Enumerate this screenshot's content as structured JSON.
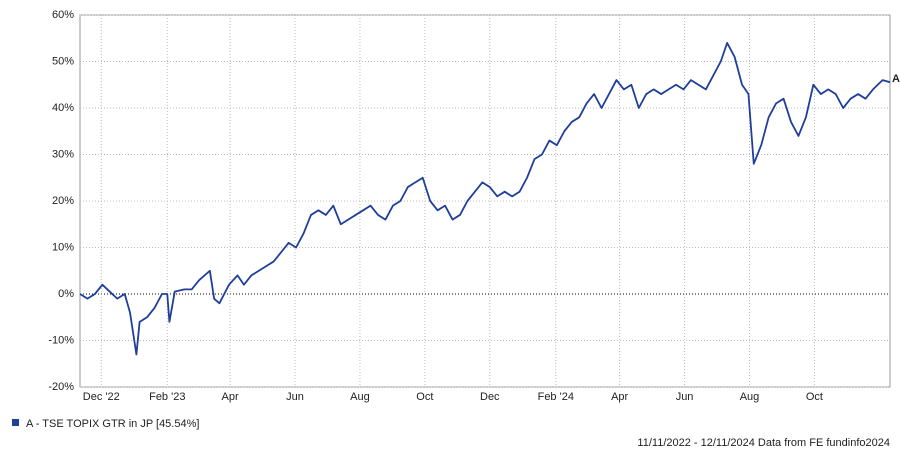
{
  "chart_data": {
    "type": "line",
    "xlim": [
      "2022-11-11",
      "2024-12-11"
    ],
    "xticks": [
      {
        "value": "2022-12-01",
        "label": "Dec '22"
      },
      {
        "value": "2023-02-01",
        "label": "Feb '23"
      },
      {
        "value": "2023-04-01",
        "label": "Apr"
      },
      {
        "value": "2023-06-01",
        "label": "Jun"
      },
      {
        "value": "2023-08-01",
        "label": "Aug"
      },
      {
        "value": "2023-10-01",
        "label": "Oct"
      },
      {
        "value": "2023-12-01",
        "label": "Dec"
      },
      {
        "value": "2024-02-01",
        "label": "Feb '24"
      },
      {
        "value": "2024-04-01",
        "label": "Apr"
      },
      {
        "value": "2024-06-01",
        "label": "Jun"
      },
      {
        "value": "2024-08-01",
        "label": "Aug"
      },
      {
        "value": "2024-10-01",
        "label": "Oct"
      }
    ],
    "ylim": [
      -20,
      60
    ],
    "yticks": [
      {
        "value": -20,
        "label": "-20%"
      },
      {
        "value": -10,
        "label": "-10%"
      },
      {
        "value": 0,
        "label": "0%"
      },
      {
        "value": 10,
        "label": "10%"
      },
      {
        "value": 20,
        "label": "20%"
      },
      {
        "value": 30,
        "label": "30%"
      },
      {
        "value": 40,
        "label": "40%"
      },
      {
        "value": 50,
        "label": "50%"
      },
      {
        "value": 60,
        "label": "60%"
      }
    ],
    "grid": true,
    "end_label": "A",
    "footer": "11/11/2022 - 12/11/2024 Data from FE fundinfo2024",
    "x": [
      "2022-11-11",
      "2022-11-18",
      "2022-11-25",
      "2022-12-02",
      "2022-12-09",
      "2022-12-16",
      "2022-12-23",
      "2022-12-28",
      "2023-01-03",
      "2023-01-06",
      "2023-01-13",
      "2023-01-20",
      "2023-01-27",
      "2023-02-01",
      "2023-02-03",
      "2023-02-08",
      "2023-02-17",
      "2023-02-24",
      "2023-03-03",
      "2023-03-13",
      "2023-03-17",
      "2023-03-22",
      "2023-03-31",
      "2023-04-08",
      "2023-04-14",
      "2023-04-21",
      "2023-04-28",
      "2023-05-05",
      "2023-05-12",
      "2023-05-19",
      "2023-05-26",
      "2023-06-02",
      "2023-06-09",
      "2023-06-16",
      "2023-06-23",
      "2023-06-30",
      "2023-07-07",
      "2023-07-14",
      "2023-07-21",
      "2023-07-28",
      "2023-08-04",
      "2023-08-11",
      "2023-08-18",
      "2023-08-25",
      "2023-09-01",
      "2023-09-08",
      "2023-09-15",
      "2023-09-22",
      "2023-09-29",
      "2023-10-06",
      "2023-10-13",
      "2023-10-20",
      "2023-10-27",
      "2023-11-03",
      "2023-11-10",
      "2023-11-17",
      "2023-11-24",
      "2023-12-01",
      "2023-12-08",
      "2023-12-15",
      "2023-12-22",
      "2023-12-29",
      "2024-01-05",
      "2024-01-12",
      "2024-01-19",
      "2024-01-26",
      "2024-02-02",
      "2024-02-09",
      "2024-02-16",
      "2024-02-23",
      "2024-03-01",
      "2024-03-08",
      "2024-03-15",
      "2024-03-22",
      "2024-03-29",
      "2024-04-05",
      "2024-04-12",
      "2024-04-19",
      "2024-04-26",
      "2024-05-03",
      "2024-05-10",
      "2024-05-17",
      "2024-05-24",
      "2024-05-31",
      "2024-06-07",
      "2024-06-14",
      "2024-06-21",
      "2024-06-28",
      "2024-07-05",
      "2024-07-11",
      "2024-07-18",
      "2024-07-25",
      "2024-07-31",
      "2024-08-05",
      "2024-08-12",
      "2024-08-19",
      "2024-08-26",
      "2024-09-02",
      "2024-09-09",
      "2024-09-16",
      "2024-09-23",
      "2024-09-30",
      "2024-10-07",
      "2024-10-14",
      "2024-10-21",
      "2024-10-28",
      "2024-11-04",
      "2024-11-11",
      "2024-11-18",
      "2024-11-25",
      "2024-12-04",
      "2024-12-11"
    ],
    "series": [
      {
        "name": "A - TSE TOPIX GTR in JP [45.54%]",
        "color": "#1f3f99",
        "values": [
          0,
          -1,
          0,
          2,
          0.5,
          -1,
          0,
          -4,
          -13,
          -6,
          -5,
          -3,
          0,
          0,
          -6,
          0.5,
          1,
          1,
          3,
          5,
          -1,
          -2,
          2,
          4,
          2,
          4,
          5,
          6,
          7,
          9,
          11,
          10,
          13,
          17,
          18,
          17,
          19,
          15,
          16,
          17,
          18,
          19,
          17,
          16,
          19,
          20,
          23,
          24,
          25,
          20,
          18,
          19,
          16,
          17,
          20,
          22,
          24,
          23,
          21,
          22,
          21,
          22,
          25,
          29,
          30,
          33,
          32,
          35,
          37,
          38,
          41,
          43,
          40,
          43,
          46,
          44,
          45,
          40,
          43,
          44,
          43,
          44,
          45,
          44,
          46,
          45,
          44,
          47,
          50,
          54,
          51,
          45,
          43,
          28,
          32,
          38,
          41,
          42,
          37,
          34,
          38,
          45,
          43,
          44,
          43,
          40,
          42,
          43,
          42,
          44,
          46,
          45.54
        ]
      }
    ]
  }
}
